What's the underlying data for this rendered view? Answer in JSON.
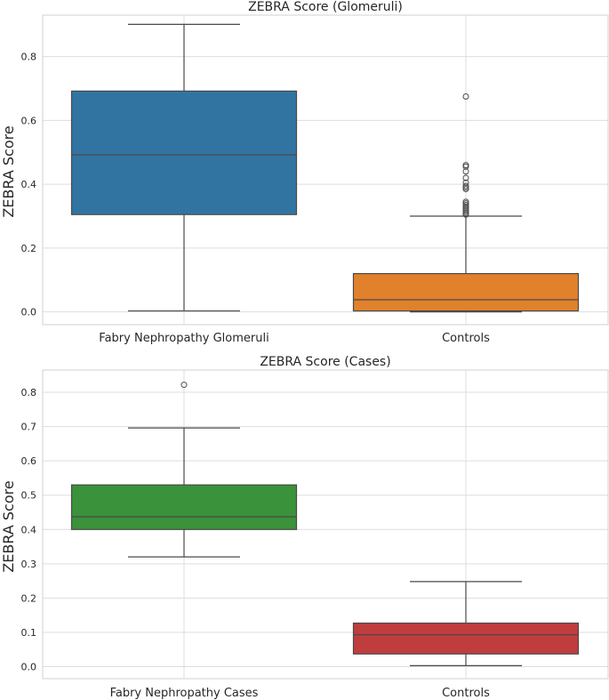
{
  "chart_data": [
    {
      "type": "box",
      "title": "ZEBRA Score (Glomeruli)",
      "ylabel": "ZEBRA Score",
      "xlabel": "",
      "ylim": [
        -0.04,
        0.93
      ],
      "yticks": [
        "0.0",
        "0.2",
        "0.4",
        "0.6",
        "0.8"
      ],
      "grid": true,
      "categories": [
        "Fabry Nephropathy Glomeruli",
        "Controls"
      ],
      "boxes": [
        {
          "label": "Fabry Nephropathy Glomeruli",
          "color": "#3274a1",
          "whisker_low": 0.003,
          "q1": 0.305,
          "median": 0.492,
          "q3": 0.692,
          "whisker_high": 0.901,
          "fliers": []
        },
        {
          "label": "Controls",
          "color": "#e1812c",
          "whisker_low": 0.0,
          "q1": 0.003,
          "median": 0.038,
          "q3": 0.12,
          "whisker_high": 0.3,
          "fliers": [
            0.305,
            0.31,
            0.315,
            0.32,
            0.325,
            0.33,
            0.335,
            0.34,
            0.345,
            0.385,
            0.39,
            0.395,
            0.405,
            0.42,
            0.44,
            0.455,
            0.46,
            0.675
          ]
        }
      ]
    },
    {
      "type": "box",
      "title": "ZEBRA Score (Cases)",
      "ylabel": "ZEBRA Score",
      "xlabel": "",
      "ylim": [
        -0.035,
        0.865
      ],
      "yticks": [
        "0.0",
        "0.1",
        "0.2",
        "0.3",
        "0.4",
        "0.5",
        "0.6",
        "0.7",
        "0.8"
      ],
      "grid": true,
      "categories": [
        "Fabry Nephropathy Cases",
        "Controls"
      ],
      "boxes": [
        {
          "label": "Fabry Nephropathy Cases",
          "color": "#3a923a",
          "whisker_low": 0.32,
          "q1": 0.4,
          "median": 0.437,
          "q3": 0.53,
          "whisker_high": 0.696,
          "fliers": [
            0.822
          ]
        },
        {
          "label": "Controls",
          "color": "#c03d3e",
          "whisker_low": 0.003,
          "q1": 0.037,
          "median": 0.093,
          "q3": 0.127,
          "whisker_high": 0.248,
          "fliers": []
        }
      ]
    }
  ]
}
